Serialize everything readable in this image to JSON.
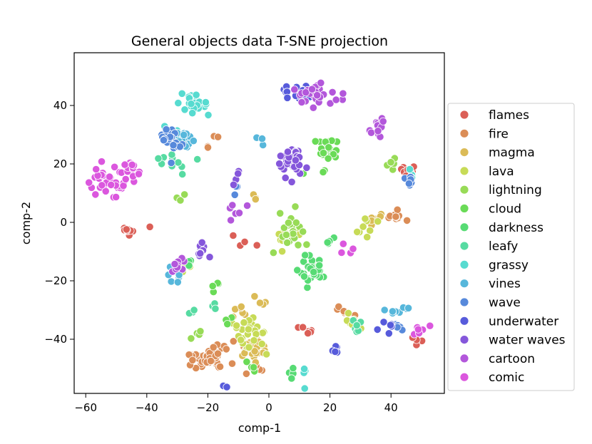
{
  "chart_data": {
    "type": "scatter",
    "title": "General objects data T-SNE projection",
    "xlabel": "comp-1",
    "ylabel": "comp-2",
    "xlim": [
      -62,
      57
    ],
    "ylim": [
      -58,
      57
    ],
    "xticks": [
      -60,
      -40,
      -20,
      0,
      20,
      40
    ],
    "yticks": [
      -40,
      -20,
      0,
      20,
      40
    ],
    "xtick_labels": [
      "−60",
      "−40",
      "−20",
      "0",
      "20",
      "40"
    ],
    "ytick_labels": [
      "−40",
      "−20",
      "0",
      "20",
      "40"
    ],
    "grid": false,
    "legend_position": "right",
    "series": [
      {
        "name": "flames",
        "color": "#db5f57",
        "clusters": [
          [
            -46,
            -2,
            3,
            2,
            10
          ],
          [
            46,
            18,
            3,
            3,
            10
          ],
          [
            13,
            -38,
            3,
            2,
            6
          ],
          [
            -8,
            -8,
            3,
            2,
            4
          ],
          [
            48,
            -40,
            2,
            2,
            6
          ]
        ]
      },
      {
        "name": "fire",
        "color": "#db8d57",
        "clusters": [
          [
            -20,
            -46,
            8,
            4,
            45
          ],
          [
            -4,
            -50,
            3,
            2,
            6
          ],
          [
            41,
            2,
            4,
            2,
            10
          ],
          [
            24,
            -30,
            3,
            2,
            6
          ],
          [
            -19,
            27,
            2,
            2,
            4
          ]
        ]
      },
      {
        "name": "magma",
        "color": "#dbbb57",
        "clusters": [
          [
            -5,
            -44,
            5,
            4,
            22
          ],
          [
            -10,
            -30,
            2,
            3,
            6
          ],
          [
            35,
            1,
            3,
            2,
            8
          ],
          [
            -4,
            8,
            2,
            2,
            3
          ],
          [
            -2,
            -26,
            2,
            3,
            4
          ]
        ]
      },
      {
        "name": "lava",
        "color": "#c7db57",
        "clusters": [
          [
            -6,
            -38,
            5,
            5,
            28
          ],
          [
            6,
            -4,
            4,
            4,
            12
          ],
          [
            33,
            -2,
            3,
            3,
            8
          ],
          [
            27,
            -34,
            3,
            2,
            8
          ],
          [
            -28,
            -15,
            2,
            2,
            4
          ]
        ]
      },
      {
        "name": "lightning",
        "color": "#98db57",
        "clusters": [
          [
            8,
            -2,
            4,
            4,
            22
          ],
          [
            -24,
            -38,
            2,
            2,
            4
          ],
          [
            40,
            20,
            2,
            2,
            5
          ],
          [
            -28,
            8,
            2,
            2,
            3
          ]
        ]
      },
      {
        "name": "cloud",
        "color": "#6adb57",
        "clusters": [
          [
            19,
            24,
            3,
            5,
            26
          ],
          [
            -18,
            -22,
            2,
            2,
            4
          ],
          [
            -5,
            -50,
            2,
            2,
            4
          ],
          [
            -12,
            -34,
            2,
            2,
            3
          ]
        ]
      },
      {
        "name": "darkness",
        "color": "#57db74",
        "clusters": [
          [
            14,
            -16,
            4,
            4,
            30
          ],
          [
            19,
            -6,
            2,
            2,
            4
          ],
          [
            -26,
            -14,
            2,
            2,
            3
          ],
          [
            7,
            -52,
            2,
            2,
            4
          ]
        ]
      },
      {
        "name": "leafy",
        "color": "#57dba2",
        "clusters": [
          [
            -31,
            22,
            4,
            4,
            10
          ],
          [
            -25,
            -32,
            2,
            2,
            4
          ],
          [
            29,
            -36,
            3,
            2,
            6
          ],
          [
            -18,
            -28,
            2,
            2,
            3
          ]
        ]
      },
      {
        "name": "grassy",
        "color": "#57dbd0",
        "clusters": [
          [
            -24,
            40,
            4,
            3,
            28
          ],
          [
            -31,
            30,
            3,
            3,
            8
          ],
          [
            46,
            16,
            2,
            2,
            5
          ],
          [
            12,
            -52,
            2,
            2,
            4
          ]
        ]
      },
      {
        "name": "vines",
        "color": "#57b7db",
        "clusters": [
          [
            -29,
            28,
            4,
            4,
            26
          ],
          [
            42,
            -30,
            3,
            2,
            8
          ],
          [
            -30,
            -18,
            3,
            2,
            6
          ],
          [
            -2,
            28,
            2,
            2,
            3
          ]
        ]
      },
      {
        "name": "wave",
        "color": "#5789db",
        "clusters": [
          [
            -32,
            28,
            3,
            4,
            22
          ],
          [
            46,
            14,
            2,
            2,
            6
          ],
          [
            -10,
            12,
            2,
            2,
            3
          ],
          [
            43,
            -36,
            2,
            2,
            5
          ]
        ]
      },
      {
        "name": "underwater",
        "color": "#575bdb",
        "clusters": [
          [
            10,
            44,
            5,
            3,
            18
          ],
          [
            21,
            -44,
            2,
            2,
            6
          ],
          [
            38,
            -36,
            3,
            2,
            6
          ],
          [
            -12,
            -56,
            2,
            2,
            2
          ]
        ]
      },
      {
        "name": "water waves",
        "color": "#8557db",
        "clusters": [
          [
            7,
            21,
            4,
            5,
            34
          ],
          [
            -22,
            -9,
            2,
            3,
            10
          ],
          [
            -10,
            16,
            2,
            2,
            4
          ]
        ]
      },
      {
        "name": "cartoon",
        "color": "#b357db",
        "clusters": [
          [
            16,
            44,
            6,
            4,
            28
          ],
          [
            36,
            32,
            2,
            3,
            12
          ],
          [
            -29,
            -15,
            3,
            3,
            10
          ],
          [
            -12,
            4,
            3,
            3,
            6
          ]
        ]
      },
      {
        "name": "comic",
        "color": "#db57de",
        "clusters": [
          [
            -52,
            14,
            5,
            4,
            38
          ],
          [
            -45,
            19,
            3,
            3,
            14
          ],
          [
            26,
            -8,
            3,
            3,
            4
          ],
          [
            48,
            -36,
            3,
            2,
            6
          ]
        ]
      }
    ]
  }
}
